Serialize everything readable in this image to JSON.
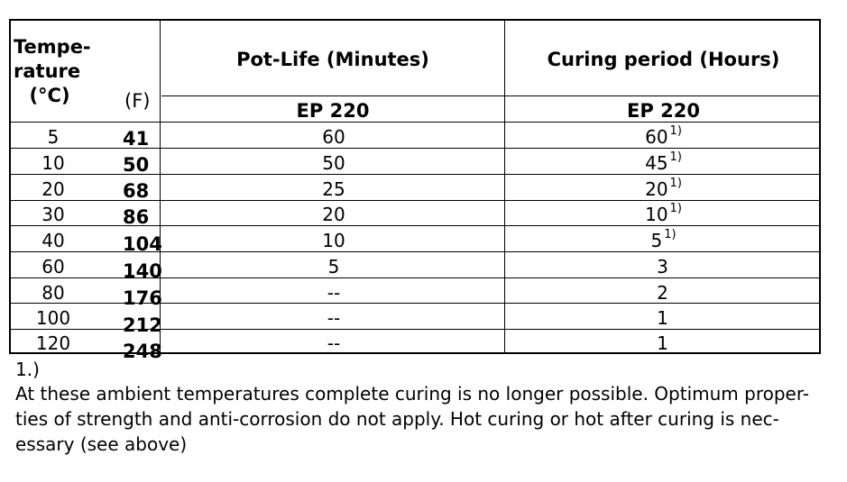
{
  "table": {
    "header": {
      "temp_line1": "Tempe-",
      "temp_line2": "rature",
      "temp_line3": "(°C)",
      "f_label": "(F)",
      "potlife": "Pot-Life (Minutes)",
      "curing": "Curing period (Hours)",
      "potlife_product": "EP 220",
      "curing_product": "EP 220"
    },
    "rows": [
      {
        "c": "5",
        "f": "41",
        "pot": "60",
        "cure": "60",
        "note": "1)"
      },
      {
        "c": "10",
        "f": "50",
        "pot": "50",
        "cure": "45",
        "note": "1)"
      },
      {
        "c": "20",
        "f": "68",
        "pot": "25",
        "cure": "20",
        "note": "1)"
      },
      {
        "c": "30",
        "f": "86",
        "pot": "20",
        "cure": "10",
        "note": "1)"
      },
      {
        "c": "40",
        "f": "104",
        "pot": "10",
        "cure": "5",
        "note": "1)"
      },
      {
        "c": "60",
        "f": "140",
        "pot": "5",
        "cure": "3",
        "note": ""
      },
      {
        "c": "80",
        "f": "176",
        "pot": "--",
        "cure": "2",
        "note": ""
      },
      {
        "c": "100",
        "f": "212",
        "pot": "--",
        "cure": "1",
        "note": ""
      },
      {
        "c": "120",
        "f": "248",
        "pot": "--",
        "cure": "1",
        "note": ""
      }
    ]
  },
  "footnote": {
    "number": "1.)",
    "line1": "At these ambient temperatures complete curing is no longer possible. Optimum proper-",
    "line2": "ties of strength and anti-corrosion do not apply. Hot curing or hot after curing is nec-",
    "line3": "essary (see above)"
  }
}
